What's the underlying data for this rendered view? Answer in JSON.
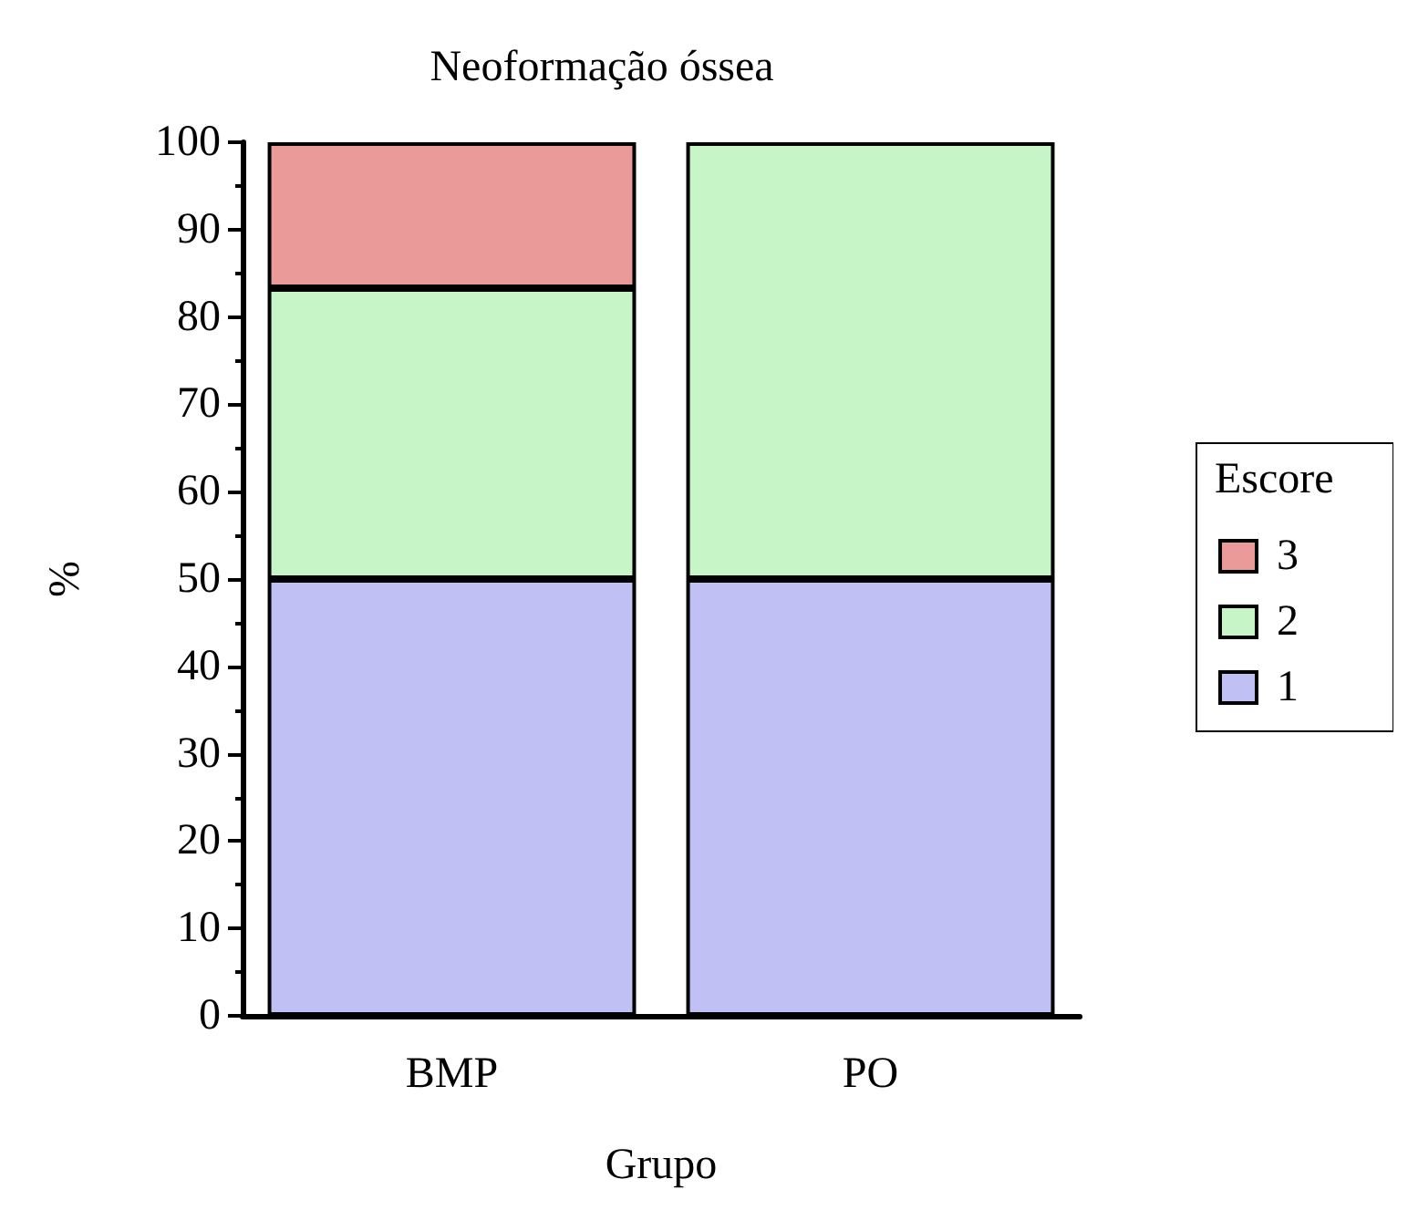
{
  "chart_data": {
    "type": "bar",
    "title": "Neoformação óssea",
    "xlabel": "Grupo",
    "ylabel": "%",
    "legend_title": "Escore",
    "categories": [
      "BMP",
      "PO"
    ],
    "stacked": true,
    "series": [
      {
        "name": "1",
        "color": "#c0c0f5",
        "values": [
          50,
          50
        ]
      },
      {
        "name": "2",
        "color": "#c8f5c8",
        "values": [
          33.3,
          50
        ]
      },
      {
        "name": "3",
        "color": "#eb9a9a",
        "values": [
          16.7,
          0
        ]
      }
    ],
    "ylim": [
      0,
      100
    ],
    "yticks": [
      0,
      10,
      20,
      30,
      40,
      50,
      60,
      70,
      80,
      90,
      100
    ],
    "grid": false,
    "legend": "right"
  }
}
